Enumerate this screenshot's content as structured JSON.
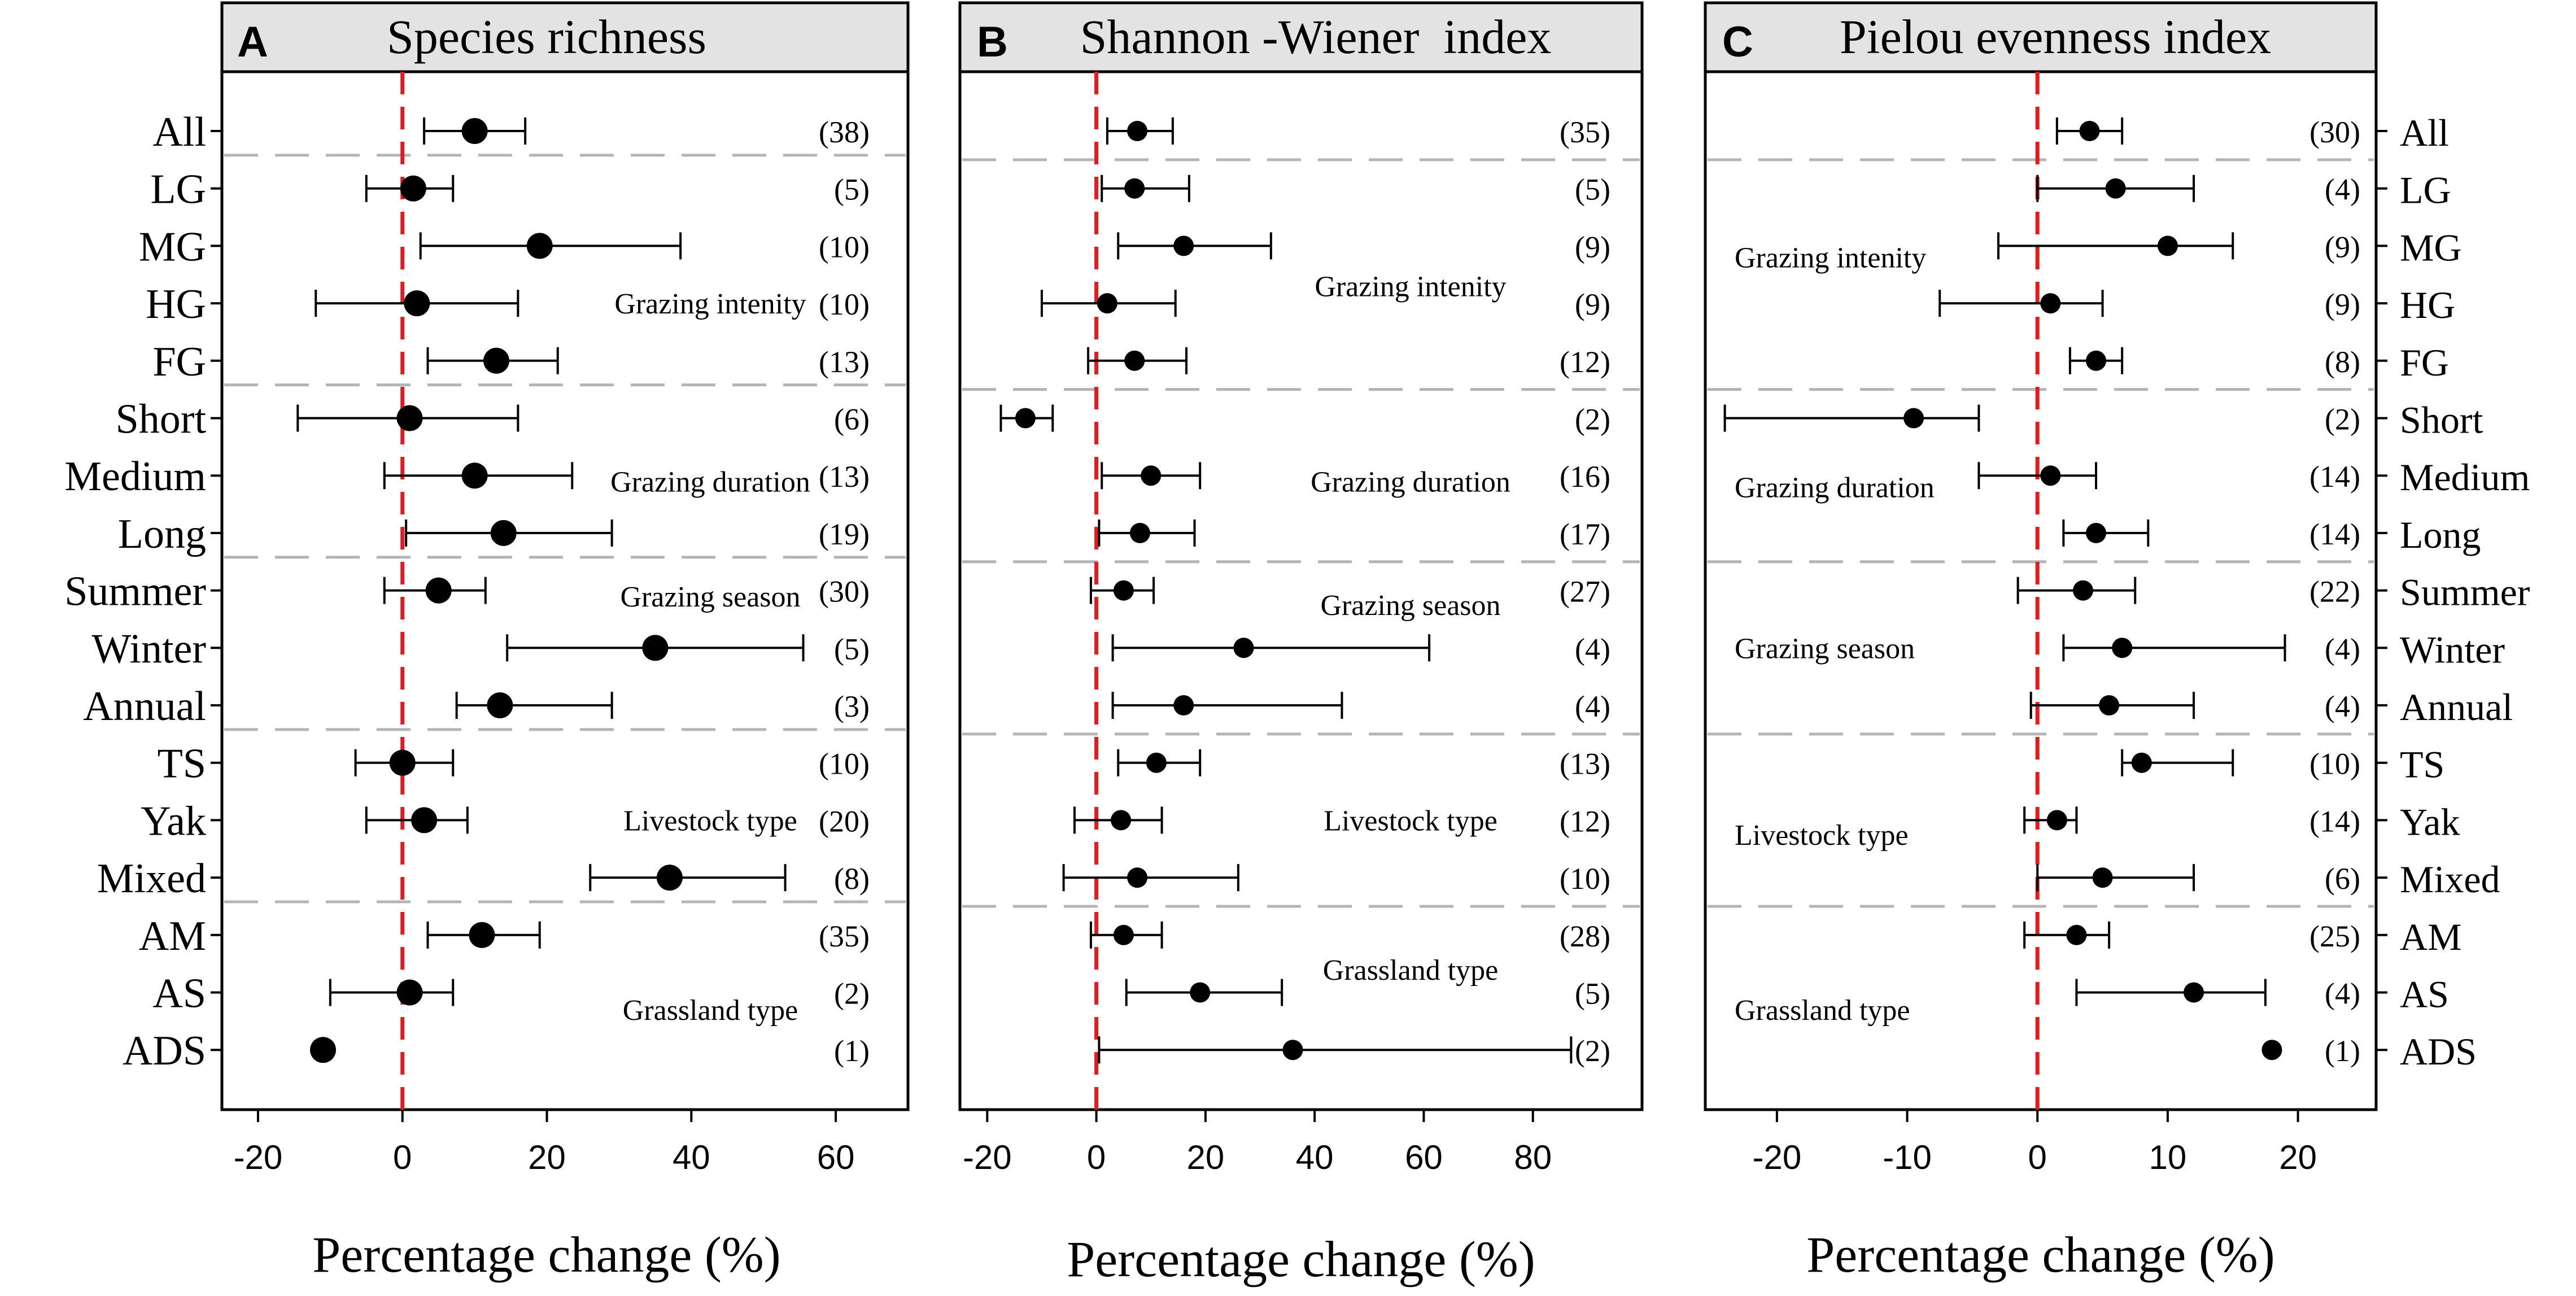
{
  "colors": {
    "zero_line": "#e41a1c",
    "separator": "#b4b4b4",
    "title_bar": "#e3e3e3",
    "marker": "#000000"
  },
  "category_labels": [
    "All",
    "LG",
    "MG",
    "HG",
    "FG",
    "Short",
    "Medium",
    "Long",
    "Summer",
    "Winter",
    "Annual",
    "TS",
    "Yak",
    "Mixed",
    "AM",
    "AS",
    "ADS"
  ],
  "chart_data": [
    {
      "type": "forest",
      "panel_letter": "A",
      "title": "Species richness",
      "xlabel": "Percentage change (%)",
      "xlim": [
        -25,
        70
      ],
      "xticks": [
        -20,
        0,
        20,
        40,
        60
      ],
      "categories": [
        "All",
        "LG",
        "MG",
        "HG",
        "FG",
        "Short",
        "Medium",
        "Long",
        "Summer",
        "Winter",
        "Annual",
        "TS",
        "Yak",
        "Mixed",
        "AM",
        "AS",
        "ADS"
      ],
      "mean": [
        10,
        1.5,
        19,
        2,
        13,
        1,
        10,
        14,
        5,
        35,
        13.5,
        0,
        3,
        37,
        11,
        1,
        -11
      ],
      "ci_low": [
        3,
        -5,
        2.5,
        -12,
        3.5,
        -14.5,
        -2.5,
        0.5,
        -2.5,
        14.5,
        7.5,
        -6.5,
        -5,
        26,
        3.5,
        -10,
        null
      ],
      "ci_high": [
        17,
        7,
        38.5,
        16,
        21.5,
        16,
        23.5,
        29,
        11.5,
        55.5,
        29,
        7,
        9,
        53,
        19,
        7,
        null
      ],
      "n_labels": [
        "(38)",
        "(5)",
        "(10)",
        "(10)",
        "(13)",
        "(6)",
        "(13)",
        "(19)",
        "(30)",
        "(5)",
        "(3)",
        "(10)",
        "(20)",
        "(8)",
        "(35)",
        "(2)",
        "(1)"
      ],
      "groups": [
        "Grazing intenity",
        "Grazing duration",
        "Grazing season",
        "Livestock type",
        "Grassland type"
      ]
    },
    {
      "type": "forest",
      "panel_letter": "B",
      "title": "Shannon -Wiener  index",
      "xlabel": "Percentage change (%)",
      "xlim": [
        -25,
        100
      ],
      "xticks": [
        -20,
        0,
        20,
        40,
        60,
        80
      ],
      "categories": [
        "All",
        "LG",
        "MG",
        "HG",
        "FG",
        "Short",
        "Medium",
        "Long",
        "Summer",
        "Winter",
        "Annual",
        "TS",
        "Yak",
        "Mixed",
        "AM",
        "AS",
        "ADS"
      ],
      "mean": [
        7.5,
        7,
        16,
        2,
        7,
        -13,
        10,
        8,
        5,
        27,
        16,
        11,
        4.5,
        7.5,
        5,
        19,
        36
      ],
      "ci_low": [
        2,
        1,
        4,
        -10,
        -1.5,
        -17.5,
        1,
        0.5,
        -1,
        3,
        3,
        4,
        -4,
        -6,
        -1,
        5.5,
        0.5
      ],
      "ci_high": [
        14,
        17,
        32,
        14.5,
        16.5,
        -8,
        19,
        18,
        10.5,
        61,
        45,
        19,
        12,
        26,
        12,
        34,
        87
      ],
      "n_labels": [
        "(35)",
        "(5)",
        "(9)",
        "(9)",
        "(12)",
        "(2)",
        "(16)",
        "(17)",
        "(27)",
        "(4)",
        "(4)",
        "(13)",
        "(12)",
        "(10)",
        "(28)",
        "(5)",
        "(2)"
      ],
      "groups": [
        "Grazing intenity",
        "Grazing duration",
        "Grazing season",
        "Livestock type",
        "Grassland type"
      ]
    },
    {
      "type": "forest",
      "panel_letter": "C",
      "title": "Pielou evenness index",
      "xlabel": "Percentage change (%)",
      "xlim": [
        -25.5,
        26
      ],
      "xticks": [
        -20,
        -10,
        0,
        10,
        20
      ],
      "categories": [
        "All",
        "LG",
        "MG",
        "HG",
        "FG",
        "Short",
        "Medium",
        "Long",
        "Summer",
        "Winter",
        "Annual",
        "TS",
        "Yak",
        "Mixed",
        "AM",
        "AS",
        "ADS"
      ],
      "mean": [
        4,
        6,
        10,
        1,
        4.5,
        -9.5,
        1,
        4.5,
        3.5,
        6.5,
        5.5,
        8,
        1.5,
        5,
        3,
        12,
        18
      ],
      "ci_low": [
        1.5,
        0,
        -3,
        -7.5,
        2.5,
        -24,
        -4.5,
        2,
        -1.5,
        2,
        -0.5,
        6.5,
        -1,
        0,
        -1,
        3,
        null
      ],
      "ci_high": [
        6.5,
        12,
        15,
        5,
        6.5,
        -4.5,
        4.5,
        8.5,
        7.5,
        19,
        12,
        15,
        3,
        12,
        5.5,
        17.5,
        null
      ],
      "n_labels": [
        "(30)",
        "(4)",
        "(9)",
        "(9)",
        "(8)",
        "(2)",
        "(14)",
        "(14)",
        "(22)",
        "(4)",
        "(4)",
        "(10)",
        "(14)",
        "(6)",
        "(25)",
        "(4)",
        "(1)"
      ],
      "groups": [
        "Grazing intenity",
        "Grazing duration",
        "Grazing season",
        "Livestock type",
        "Grassland type"
      ]
    }
  ]
}
